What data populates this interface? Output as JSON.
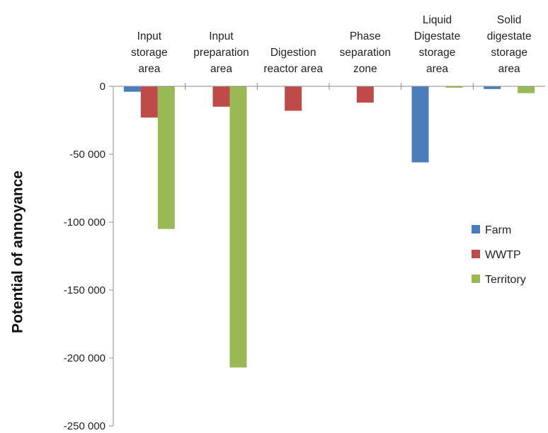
{
  "chart_data": {
    "type": "bar",
    "title": "",
    "xlabel": "",
    "ylabel": "Potential of annoyance",
    "categories": [
      [
        "Input",
        "storage",
        "area"
      ],
      [
        "Input",
        "preparation",
        "area"
      ],
      [
        "Digestion",
        "reactor area"
      ],
      [
        "Phase",
        "separation",
        "zone"
      ],
      [
        "Liquid",
        "Digestate",
        "storage",
        "area"
      ],
      [
        "Solid",
        "digestate",
        "storage",
        "area"
      ]
    ],
    "series": [
      {
        "name": "Farm",
        "color": "#4a7ebb",
        "values": [
          -4000,
          0,
          0,
          0,
          -56000,
          -2000
        ]
      },
      {
        "name": "WWTP",
        "color": "#be4b48",
        "values": [
          -23000,
          -15000,
          -18000,
          -12000,
          0,
          0
        ]
      },
      {
        "name": "Territory",
        "color": "#98b954",
        "values": [
          -105000,
          -207000,
          0,
          0,
          -1000,
          -5000
        ]
      }
    ],
    "ylim": [
      -250000,
      0
    ],
    "yticks": [
      0,
      -50000,
      -100000,
      -150000,
      -200000,
      -250000
    ],
    "ytick_labels": [
      "0",
      "-50 000",
      "-100 000",
      "-150 000",
      "-200 000",
      "-250 000"
    ],
    "legend_position": "right",
    "grid": false,
    "category_axis_position": "top"
  }
}
